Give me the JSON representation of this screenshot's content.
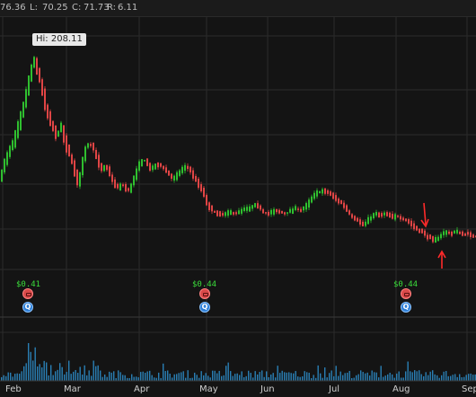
{
  "ohlc_bar": {
    "open_value": "76.36",
    "low_label": "L:",
    "low_value": "70.25",
    "close_label": "C:",
    "close_value": "71.73",
    "range_label": "R:",
    "range_value": "6.11"
  },
  "hi_marker": "Hi: 208.11",
  "dividends": [
    "$0.41",
    "$0.44",
    "$0.44"
  ],
  "earnings_glyph": "Q",
  "x_axis": [
    "Feb",
    "Mar",
    "Apr",
    "May",
    "Jun",
    "Jul",
    "Aug",
    "Sep"
  ],
  "colors": {
    "up": "#2fbf2f",
    "down": "#e04545",
    "volume": "#2a7fb5",
    "grid": "#2b2b2b",
    "arrow": "#ff2a2a"
  }
}
